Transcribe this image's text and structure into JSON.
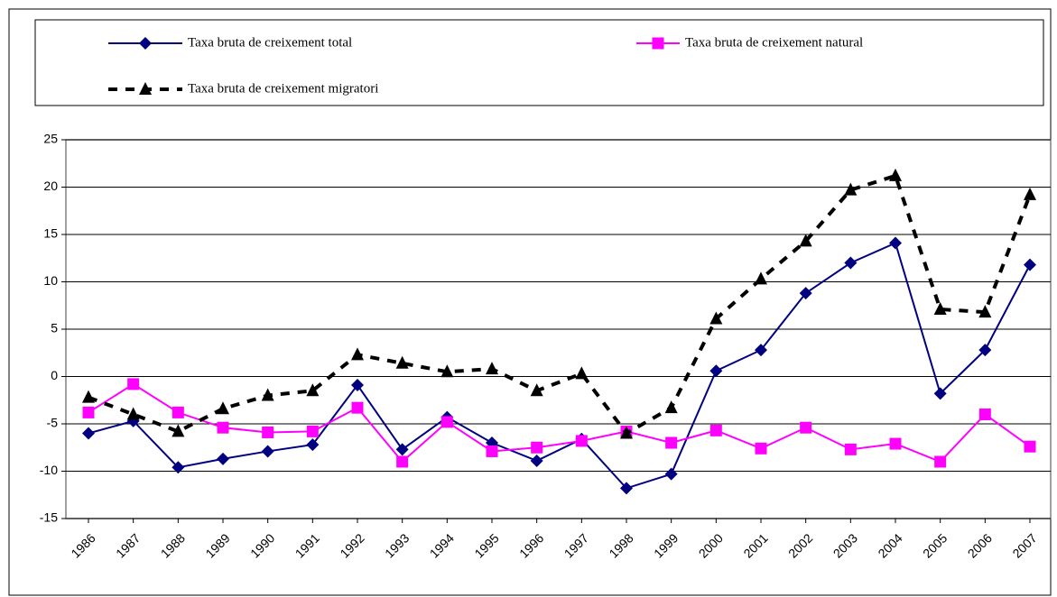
{
  "chart_data": {
    "type": "line",
    "categories": [
      "1986",
      "1987",
      "1988",
      "1989",
      "1990",
      "1991",
      "1992",
      "1993",
      "1994",
      "1995",
      "1996",
      "1997",
      "1998",
      "1999",
      "2000",
      "2001",
      "2002",
      "2003",
      "2004",
      "2005",
      "2006",
      "2007"
    ],
    "series": [
      {
        "name": "Taxa bruta de creixement total",
        "color": "#000080",
        "marker": "diamond",
        "dash": false,
        "values": [
          -6,
          -4.7,
          -9.6,
          -8.7,
          -7.9,
          -7.2,
          -0.9,
          -7.7,
          -4.3,
          -7.0,
          -8.9,
          -6.6,
          -11.8,
          -10.3,
          0.6,
          2.8,
          8.8,
          12.0,
          14.1,
          -1.8,
          2.8,
          11.8
        ]
      },
      {
        "name": "Taxa bruta de creixement natural",
        "color": "#ff00ff",
        "marker": "square",
        "dash": false,
        "values": [
          -3.8,
          -0.8,
          -3.8,
          -5.4,
          -5.9,
          -5.8,
          -3.3,
          -9.0,
          -4.8,
          -7.9,
          -7.5,
          -6.8,
          -5.8,
          -7.0,
          -5.7,
          -7.6,
          -5.4,
          -7.7,
          -7.1,
          -9.0,
          -4.0,
          -7.4
        ]
      },
      {
        "name": "Taxa bruta de creixement migratori",
        "color": "#000000",
        "marker": "triangle",
        "dash": true,
        "values": [
          -2.2,
          -4.0,
          -5.8,
          -3.4,
          -2.0,
          -1.5,
          2.3,
          1.4,
          0.5,
          0.8,
          -1.5,
          0.3,
          -6.0,
          -3.3,
          6.1,
          10.3,
          14.3,
          19.7,
          21.2,
          7.1,
          6.8,
          19.2
        ]
      }
    ],
    "ylim": [
      -15,
      25
    ],
    "yticks": [
      -15,
      -10,
      -5,
      0,
      5,
      10,
      15,
      20,
      25
    ],
    "grid": true,
    "legend": "top"
  }
}
